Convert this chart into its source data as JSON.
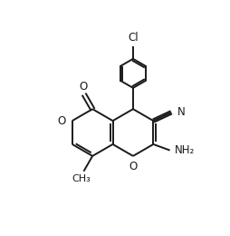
{
  "bg_color": "#ffffff",
  "line_color": "#1a1a1a",
  "line_width": 1.4,
  "font_size": 8.5,
  "figsize": [
    2.54,
    2.6
  ],
  "dpi": 100,
  "xlim": [
    0,
    10
  ],
  "ylim": [
    0,
    10.5
  ]
}
